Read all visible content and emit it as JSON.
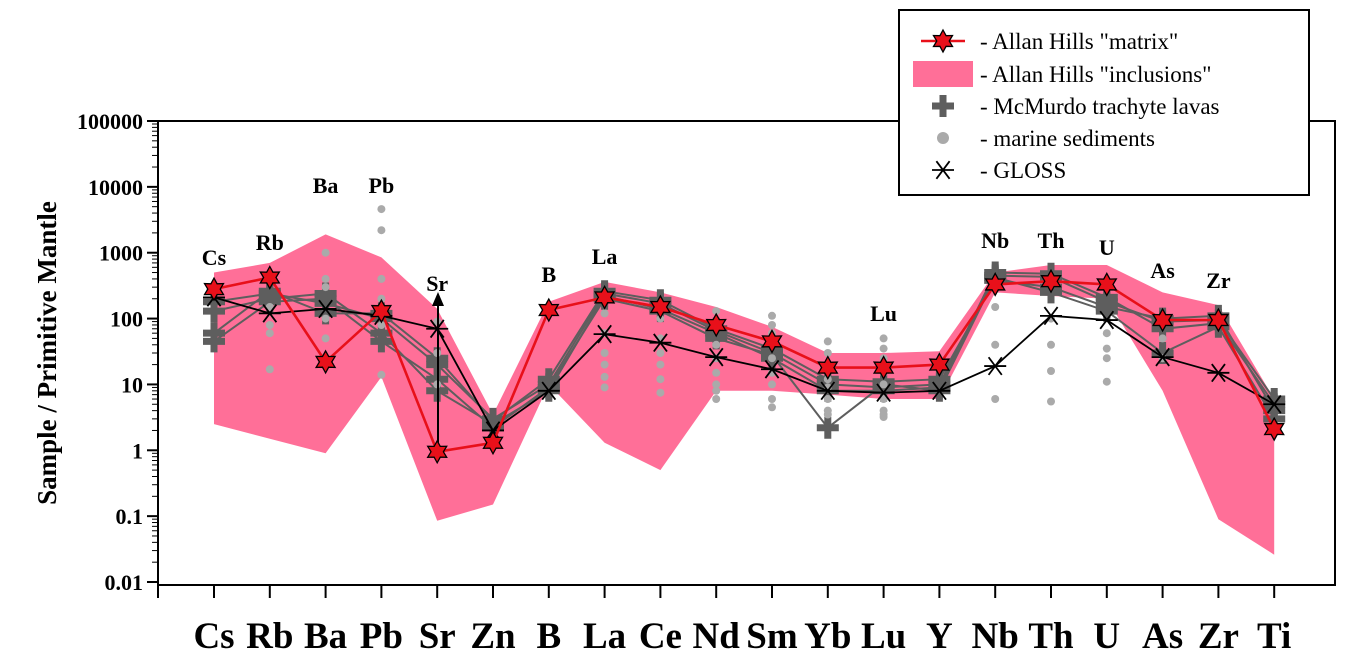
{
  "chart_data": {
    "type": "line",
    "ylabel": "Sample / Primitive Mantle",
    "xlabel": "",
    "yscale": "log",
    "ylim": [
      0.01,
      100000
    ],
    "y_ticks": [
      "0.01",
      "0.1",
      "1",
      "10",
      "100",
      "1000",
      "10000",
      "100000"
    ],
    "categories": [
      "Cs",
      "Rb",
      "Ba",
      "Pb",
      "Sr",
      "Zn",
      "B",
      "La",
      "Ce",
      "Nd",
      "Sm",
      "Yb",
      "Lu",
      "Y",
      "Nb",
      "Th",
      "U",
      "As",
      "Zr",
      "Ti"
    ],
    "point_labels": [
      "Cs",
      "Rb",
      "Ba",
      "Pb",
      "Sr",
      "B",
      "La",
      "Lu",
      "Nb",
      "Th",
      "U",
      "As",
      "Zr"
    ],
    "legend_position": "top-right",
    "legend": [
      {
        "label": "- Allan Hills \"matrix\"",
        "symbol": "red-star"
      },
      {
        "label": "- Allan Hills \"inclusions\"",
        "symbol": "pink-band"
      },
      {
        "label": "- McMurdo trachyte lavas",
        "symbol": "gray-plus"
      },
      {
        "label": "- marine sediments",
        "symbol": "gray-dot"
      },
      {
        "label": "- GLOSS",
        "symbol": "black-asterisk"
      }
    ],
    "colors": {
      "matrix": "#e8101a",
      "inclusions": "#ff6f98",
      "trachyte": "#5e5e5e",
      "sediments": "#aaaaaa",
      "gloss": "#000000"
    },
    "series": [
      {
        "name": "Allan Hills \"matrix\"",
        "values": [
          280,
          420,
          22,
          130,
          0.95,
          1.3,
          135,
          210,
          150,
          80,
          45,
          18,
          18,
          20,
          330,
          370,
          330,
          95,
          95,
          2.1
        ]
      },
      {
        "name": "Allan Hills \"inclusions\"",
        "upper": [
          500,
          700,
          1900,
          850,
          140,
          3.5,
          180,
          360,
          250,
          150,
          75,
          30,
          30,
          32,
          500,
          650,
          650,
          250,
          160,
          6
        ],
        "lower": [
          2.5,
          1.5,
          0.9,
          13,
          0.085,
          0.15,
          10,
          1.3,
          0.5,
          8,
          8,
          7,
          6,
          6,
          250,
          220,
          200,
          8,
          0.09,
          0.026
        ]
      },
      {
        "name": "GLOSS",
        "values": [
          210,
          120,
          140,
          110,
          70,
          2,
          8,
          58,
          43,
          26,
          17,
          8,
          7.5,
          8,
          19,
          110,
          95,
          26,
          15,
          5
        ]
      }
    ],
    "trachyte_lines": [
      [
        180,
        240,
        170,
        100,
        20,
        3,
        10,
        240,
        170,
        65,
        30,
        10,
        9,
        10,
        450,
        430,
        180,
        90,
        95,
        6
      ],
      [
        130,
        200,
        240,
        60,
        8,
        2.5,
        8,
        220,
        140,
        60,
        25,
        8,
        8,
        9,
        500,
        480,
        210,
        70,
        85,
        5
      ],
      [
        60,
        260,
        120,
        120,
        25,
        2.8,
        12,
        260,
        190,
        70,
        35,
        12,
        11,
        12,
        380,
        300,
        150,
        100,
        110,
        4
      ],
      [
        45,
        180,
        200,
        45,
        12,
        2.2,
        9,
        200,
        130,
        50,
        28,
        2.2,
        10,
        8,
        420,
        250,
        130,
        30,
        75,
        3
      ]
    ],
    "sediments": [
      {
        "x": "Rb",
        "values": [
          60,
          80,
          17,
          150
        ]
      },
      {
        "x": "Ba",
        "values": [
          1000,
          400,
          100,
          50,
          300
        ]
      },
      {
        "x": "Pb",
        "values": [
          4600,
          2200,
          400,
          200,
          80,
          14
        ]
      },
      {
        "x": "Sr",
        "values": [
          90,
          30,
          10
        ]
      },
      {
        "x": "La",
        "values": [
          120,
          60,
          30,
          20,
          13,
          9
        ]
      },
      {
        "x": "Ce",
        "values": [
          100,
          50,
          30,
          20,
          12,
          7.5
        ]
      },
      {
        "x": "Nd",
        "values": [
          130,
          70,
          40,
          25,
          15,
          10,
          8,
          6
        ]
      },
      {
        "x": "Sm",
        "values": [
          110,
          80,
          60,
          40,
          25,
          15,
          10,
          6,
          4.5
        ]
      },
      {
        "x": "Yb",
        "values": [
          45,
          30,
          20,
          12,
          9,
          6,
          4,
          3.5
        ]
      },
      {
        "x": "Lu",
        "values": [
          50,
          35,
          25,
          15,
          10,
          6,
          4,
          3.5,
          3.2
        ]
      },
      {
        "x": "Nb",
        "values": [
          150,
          40,
          6
        ]
      },
      {
        "x": "Th",
        "values": [
          100,
          40,
          16,
          5.5
        ]
      },
      {
        "x": "U",
        "values": [
          60,
          35,
          25,
          11
        ]
      },
      {
        "x": "As",
        "values": [
          50,
          25
        ]
      }
    ]
  }
}
